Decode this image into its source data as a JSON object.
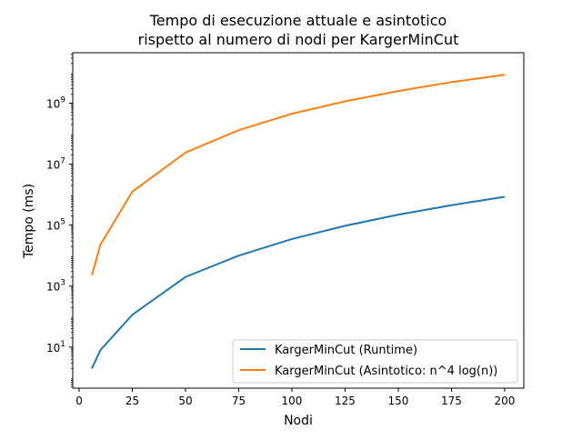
{
  "chart_data": {
    "type": "line",
    "title_lines": [
      "Tempo di esecuzione attuale e asintotico",
      "rispetto al numero di nodi per KargerMinCut"
    ],
    "xlabel": "Nodi",
    "ylabel": "Tempo (ms)",
    "xlim": [
      -3,
      209
    ],
    "ylim": [
      0.45,
      45000000000
    ],
    "yscale": "log",
    "x_ticks": [
      0,
      25,
      50,
      75,
      100,
      125,
      150,
      175,
      200
    ],
    "y_ticks": [
      {
        "value": 10,
        "base": "10",
        "exp": "1"
      },
      {
        "value": 1000,
        "base": "10",
        "exp": "3"
      },
      {
        "value": 100000,
        "base": "10",
        "exp": "5"
      },
      {
        "value": 10000000,
        "base": "10",
        "exp": "7"
      },
      {
        "value": 1000000000,
        "base": "10",
        "exp": "9"
      }
    ],
    "grid": false,
    "legend_position": "lower-right",
    "series": [
      {
        "name": "KargerMinCut (Runtime)",
        "color": "#1f77b4",
        "x": [
          6,
          10,
          25,
          50,
          75,
          100,
          125,
          150,
          175,
          200
        ],
        "y": [
          2,
          8,
          115,
          2000,
          10000,
          35000,
          95000,
          220000,
          450000,
          850000
        ]
      },
      {
        "name": "KargerMinCut (Asintotico: n^4 log(n))",
        "color": "#ff7f0e",
        "x": [
          6,
          10,
          25,
          50,
          75,
          100,
          125,
          150,
          175,
          200
        ],
        "y": [
          2300,
          23000,
          1250000,
          24000000,
          130000000,
          450000000,
          1150000000,
          2500000000,
          4900000000,
          8500000000
        ]
      }
    ]
  }
}
